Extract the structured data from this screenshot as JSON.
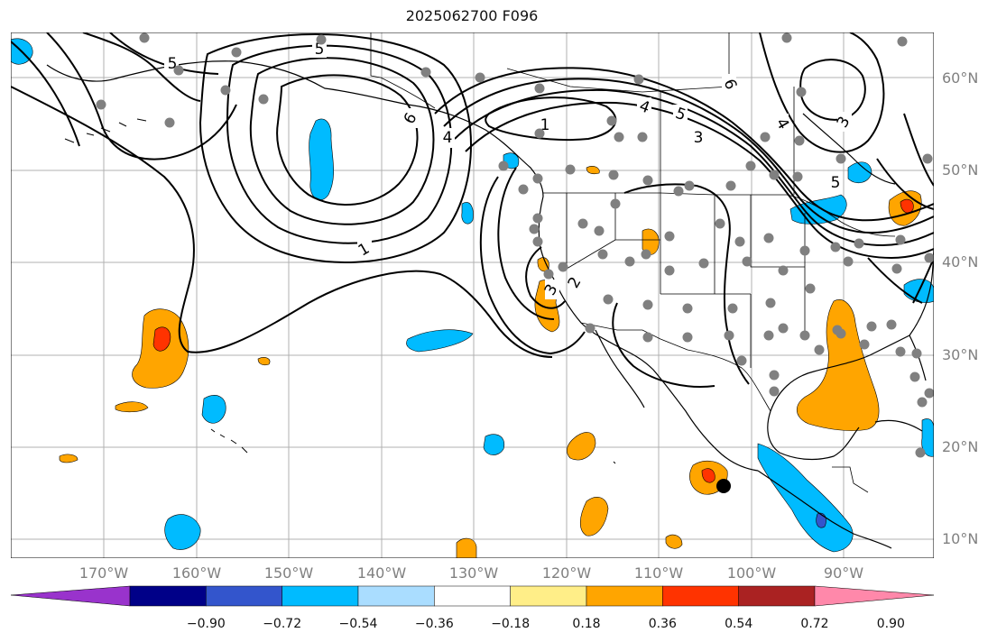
{
  "title": "2025062700 F096",
  "lat_labels": [
    "60°N",
    "50°N",
    "40°N",
    "30°N",
    "20°N",
    "10°N"
  ],
  "lon_labels": [
    "170°W",
    "160°W",
    "150°W",
    "140°W",
    "130°W",
    "120°W",
    "110°W",
    "100°W",
    "90°W"
  ],
  "contour_labels": [
    "5",
    "5",
    "6",
    "4",
    "1",
    "4",
    "5",
    "6",
    "3",
    "4",
    "3",
    "5",
    "1",
    "3",
    "2"
  ],
  "colorbar": {
    "ticks": [
      "−0.90",
      "−0.72",
      "−0.54",
      "−0.36",
      "−0.18",
      "0.18",
      "0.36",
      "0.54",
      "0.72",
      "0.90"
    ],
    "colors": [
      "#9933cc",
      "#000088",
      "#3355cc",
      "#00bbff",
      "#aaddff",
      "#ffffff",
      "#ffee88",
      "#ffa500",
      "#ff3300",
      "#aa2222",
      "#ff88aa"
    ]
  },
  "colors": {
    "contour": "#000000",
    "grid": "#b0b0b0",
    "coast": "#000000",
    "station": "#808080",
    "marker": "#000000"
  }
}
